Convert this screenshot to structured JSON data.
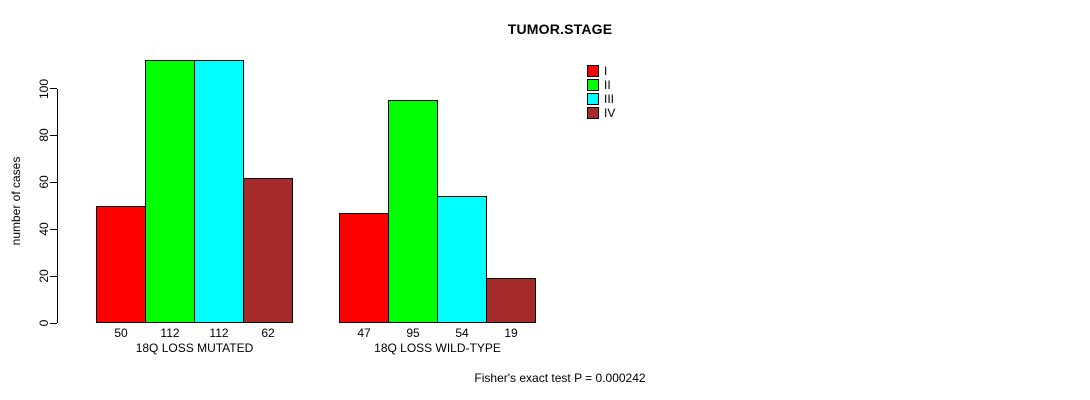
{
  "chart_data": {
    "type": "bar",
    "title": "TUMOR.STAGE",
    "ylabel": "number of cases",
    "xlabel": "",
    "categories": [
      "18Q LOSS MUTATED",
      "18Q LOSS WILD-TYPE"
    ],
    "series": [
      {
        "name": "I",
        "color": "#FF0000",
        "values": [
          50,
          47
        ]
      },
      {
        "name": "II",
        "color": "#00FF00",
        "values": [
          112,
          95
        ]
      },
      {
        "name": "III",
        "color": "#00FFFF",
        "values": [
          112,
          54
        ]
      },
      {
        "name": "IV",
        "color": "#A52A2A",
        "values": [
          62,
          19
        ]
      }
    ],
    "bar_value_labels": [
      [
        50,
        112,
        112,
        62
      ],
      [
        47,
        95,
        54,
        19
      ]
    ],
    "yticks": [
      0,
      20,
      40,
      60,
      80,
      100
    ],
    "ylim": [
      0,
      112
    ],
    "grid": false,
    "legend_position": "top-right",
    "legend_entries": [
      "I",
      "II",
      "III",
      "IV"
    ],
    "caption": "Fisher's exact test P = 0.000242",
    "background_color": "#FFFFFF",
    "axis_color": "#000000"
  }
}
